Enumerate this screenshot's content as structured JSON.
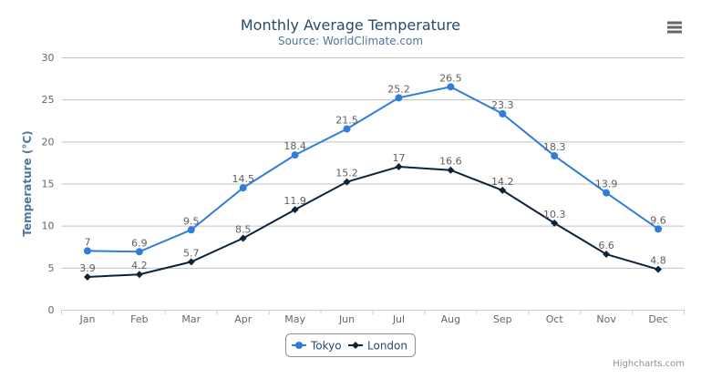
{
  "chart_data": {
    "type": "line",
    "title": "Monthly Average Temperature",
    "subtitle": "Source: WorldClimate.com",
    "xlabel": "",
    "ylabel": "Temperature (°C)",
    "categories": [
      "Jan",
      "Feb",
      "Mar",
      "Apr",
      "May",
      "Jun",
      "Jul",
      "Aug",
      "Sep",
      "Oct",
      "Nov",
      "Dec"
    ],
    "ylim": [
      0,
      30
    ],
    "yticks": [
      0,
      5,
      10,
      15,
      20,
      25,
      30
    ],
    "grid": true,
    "legend_position": "bottom-center",
    "data_labels": true,
    "series": [
      {
        "name": "Tokyo",
        "color": "#2f7ed8",
        "marker": "circle",
        "values": [
          7,
          6.9,
          9.5,
          14.5,
          18.4,
          21.5,
          25.2,
          26.5,
          23.3,
          18.3,
          13.9,
          9.6
        ]
      },
      {
        "name": "London",
        "color": "#0d233a",
        "marker": "diamond",
        "values": [
          3.9,
          4.2,
          5.7,
          8.5,
          11.9,
          15.2,
          17,
          16.6,
          14.2,
          10.3,
          6.6,
          4.8
        ]
      }
    ]
  },
  "menu": {
    "icon": "hamburger-menu-icon"
  },
  "credits": "Highcharts.com"
}
